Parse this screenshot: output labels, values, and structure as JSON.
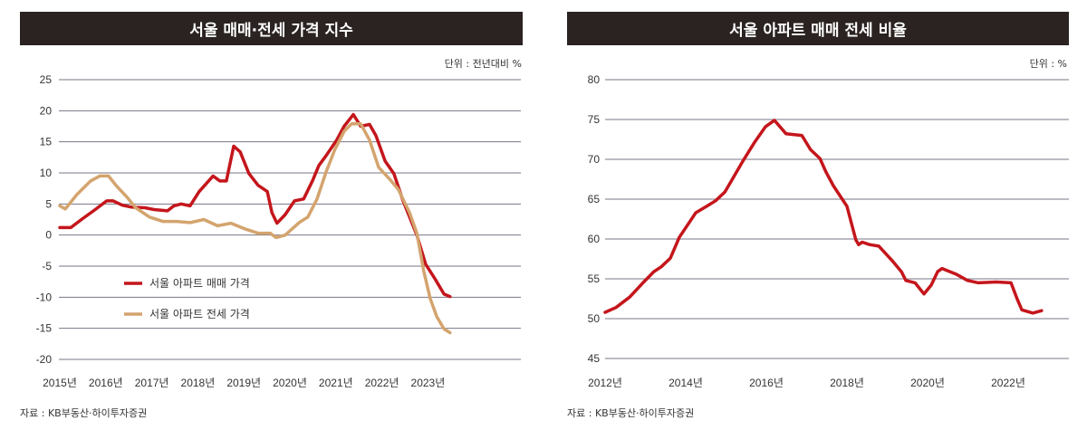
{
  "colors": {
    "title_bg": "#2a2321",
    "sale": "#c4161c",
    "jeonse": "#d4a46e",
    "grid": "#7a7486"
  },
  "chart_data": [
    {
      "type": "line",
      "title": "서울 매매·전세 가격 지수",
      "unit": "단위 : 전년대비 %",
      "source": "자료 : KB부동산·하이투자증권",
      "ylim": [
        -20,
        25
      ],
      "yticks": [
        25,
        20,
        15,
        10,
        5,
        0,
        -5,
        -10,
        -15,
        -20
      ],
      "xticks": [
        {
          "v": 2015,
          "label": "2015년"
        },
        {
          "v": 2016,
          "label": "2016년"
        },
        {
          "v": 2017,
          "label": "2017년"
        },
        {
          "v": 2018,
          "label": "2018년"
        },
        {
          "v": 2019,
          "label": "2019년"
        },
        {
          "v": 2020,
          "label": "2020년"
        },
        {
          "v": 2021,
          "label": "2021년"
        },
        {
          "v": 2022,
          "label": "2022년"
        },
        {
          "v": 2023,
          "label": "2023년"
        }
      ],
      "grid": true,
      "legend_placement": "bottom-left",
      "series": [
        {
          "name": "서울 아파트 매매 가격",
          "color": "#c4161c",
          "x": [
            2015.0,
            2015.24,
            2015.47,
            2015.77,
            2016.02,
            2016.16,
            2016.36,
            2016.56,
            2016.85,
            2017.05,
            2017.34,
            2017.48,
            2017.64,
            2017.83,
            2018.03,
            2018.33,
            2018.48,
            2018.62,
            2018.78,
            2018.92,
            2019.11,
            2019.31,
            2019.51,
            2019.61,
            2019.72,
            2019.9,
            2020.1,
            2020.3,
            2020.49,
            2020.63,
            2020.79,
            2021.02,
            2021.18,
            2021.38,
            2021.54,
            2021.73,
            2021.87,
            2022.07,
            2022.26,
            2022.46,
            2022.76,
            2022.95,
            2023.15,
            2023.35,
            2023.48
          ],
          "y": [
            1.2,
            1.2,
            2.5,
            4.1,
            5.5,
            5.5,
            4.8,
            4.5,
            4.4,
            4.1,
            3.9,
            4.7,
            5.0,
            4.7,
            7.0,
            9.5,
            8.7,
            8.7,
            14.3,
            13.4,
            9.9,
            8.0,
            7.0,
            3.6,
            1.9,
            3.3,
            5.5,
            5.8,
            8.7,
            11.2,
            12.8,
            15.3,
            17.5,
            19.4,
            17.5,
            17.8,
            16.0,
            11.9,
            9.9,
            5.5,
            0.0,
            -4.7,
            -7.0,
            -9.5,
            -9.9
          ]
        },
        {
          "name": "서울 아파트 전세 가격",
          "color": "#d4a46e",
          "x": [
            2015.0,
            2015.12,
            2015.37,
            2015.67,
            2015.87,
            2016.06,
            2016.22,
            2016.46,
            2016.65,
            2016.95,
            2017.24,
            2017.54,
            2017.83,
            2018.13,
            2018.43,
            2018.72,
            2019.02,
            2019.31,
            2019.57,
            2019.7,
            2019.9,
            2020.2,
            2020.39,
            2020.59,
            2020.79,
            2020.98,
            2021.18,
            2021.34,
            2021.54,
            2021.73,
            2021.93,
            2022.17,
            2022.36,
            2022.6,
            2022.76,
            2022.91,
            2023.05,
            2023.19,
            2023.35,
            2023.48
          ],
          "y": [
            4.7,
            4.2,
            6.5,
            8.7,
            9.5,
            9.5,
            8.0,
            6.1,
            4.4,
            2.9,
            2.2,
            2.2,
            2.0,
            2.5,
            1.5,
            1.9,
            1.0,
            0.3,
            0.3,
            -0.4,
            0.0,
            2.0,
            2.9,
            5.8,
            10.2,
            13.8,
            16.7,
            17.9,
            17.9,
            15.3,
            10.9,
            9.0,
            7.3,
            3.6,
            0.3,
            -5.8,
            -10.2,
            -13.1,
            -15.1,
            -15.7
          ]
        }
      ]
    },
    {
      "type": "line",
      "title": "서울 아파트 매매 전세 비율",
      "unit": "단위 : %",
      "source": "자료 : KB부동산·하이투자증권",
      "ylim": [
        45,
        80
      ],
      "yticks": [
        80,
        75,
        70,
        65,
        60,
        55,
        50,
        45
      ],
      "xticks": [
        {
          "v": 2012,
          "label": "2012년"
        },
        {
          "v": 2014,
          "label": "2014년"
        },
        {
          "v": 2016,
          "label": "2016년"
        },
        {
          "v": 2018,
          "label": "2018년"
        },
        {
          "v": 2020,
          "label": "2020년"
        },
        {
          "v": 2022,
          "label": "2022년"
        }
      ],
      "grid": true,
      "series": [
        {
          "color": "#c4161c",
          "x": [
            2012.0,
            2012.27,
            2012.61,
            2012.94,
            2013.21,
            2013.39,
            2013.62,
            2013.84,
            2014.25,
            2014.52,
            2014.74,
            2014.97,
            2015.19,
            2015.42,
            2015.69,
            2015.98,
            2016.2,
            2016.49,
            2016.88,
            2017.1,
            2017.33,
            2017.48,
            2017.66,
            2018.0,
            2018.22,
            2018.29,
            2018.38,
            2018.56,
            2018.79,
            2019.12,
            2019.35,
            2019.46,
            2019.69,
            2019.91,
            2020.09,
            2020.25,
            2020.36,
            2020.7,
            2020.99,
            2021.26,
            2021.71,
            2022.07,
            2022.22,
            2022.34,
            2022.61,
            2022.83
          ],
          "y": [
            50.8,
            51.4,
            52.7,
            54.5,
            55.9,
            56.5,
            57.6,
            60.2,
            63.3,
            64.1,
            64.8,
            65.9,
            67.8,
            69.8,
            72.0,
            74.1,
            74.9,
            73.2,
            73.0,
            71.2,
            70.1,
            68.4,
            66.7,
            64.1,
            59.9,
            59.3,
            59.6,
            59.3,
            59.1,
            57.3,
            55.9,
            54.8,
            54.5,
            53.1,
            54.2,
            55.9,
            56.3,
            55.6,
            54.8,
            54.5,
            54.6,
            54.5,
            52.5,
            51.1,
            50.7,
            51.0
          ]
        }
      ]
    }
  ]
}
